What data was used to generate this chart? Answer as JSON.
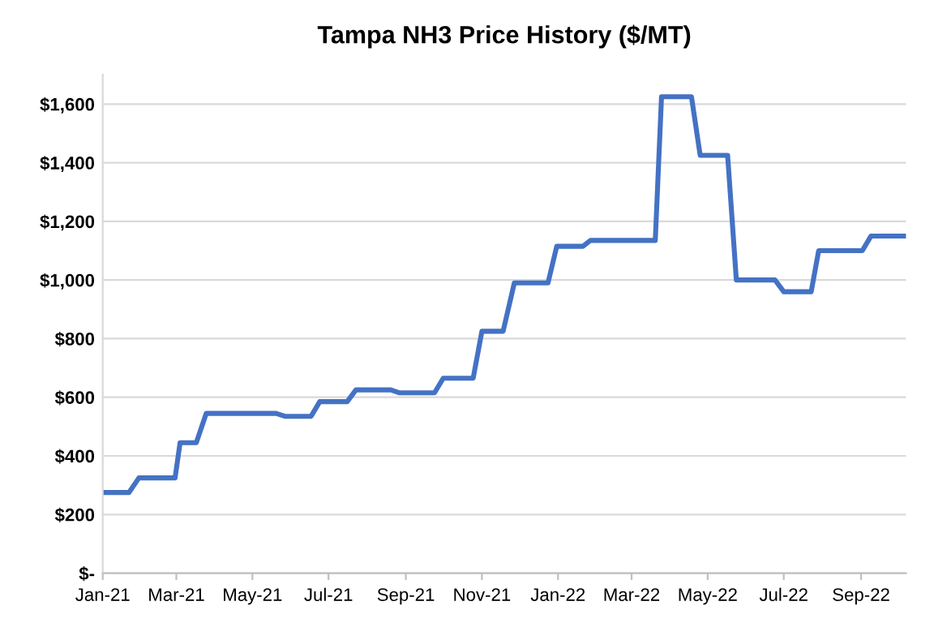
{
  "chart_data": {
    "type": "line",
    "title": "Tampa NH3 Price History ($/MT)",
    "x": [
      "2021-01-01",
      "2021-01-22",
      "2021-01-30",
      "2021-02-28",
      "2021-03-04",
      "2021-03-17",
      "2021-03-25",
      "2021-05-20",
      "2021-05-27",
      "2021-06-17",
      "2021-06-24",
      "2021-07-16",
      "2021-07-23",
      "2021-08-20",
      "2021-08-27",
      "2021-09-24",
      "2021-10-01",
      "2021-10-25",
      "2021-11-01",
      "2021-11-18",
      "2021-11-27",
      "2021-12-24",
      "2021-12-31",
      "2022-01-21",
      "2022-01-27",
      "2022-03-20",
      "2022-03-25",
      "2022-04-18",
      "2022-04-25",
      "2022-05-17",
      "2022-05-24",
      "2022-06-24",
      "2022-07-01",
      "2022-07-23",
      "2022-07-29",
      "2022-09-02",
      "2022-09-09",
      "2022-10-07"
    ],
    "series": [
      {
        "color": "#4472c4",
        "values": [
          275,
          275,
          325,
          325,
          445,
          445,
          545,
          545,
          535,
          535,
          585,
          585,
          625,
          625,
          615,
          615,
          665,
          665,
          825,
          825,
          990,
          990,
          1115,
          1115,
          1135,
          1135,
          1625,
          1625,
          1425,
          1425,
          1000,
          1000,
          960,
          960,
          1100,
          1100,
          1150,
          1150
        ]
      }
    ],
    "xlim": [
      "2021-01-01",
      "2022-10-07"
    ],
    "xticks": [
      {
        "value": "2021-01-01",
        "label": "Jan-21"
      },
      {
        "value": "2021-03-01",
        "label": "Mar-21"
      },
      {
        "value": "2021-05-01",
        "label": "May-21"
      },
      {
        "value": "2021-07-01",
        "label": "Jul-21"
      },
      {
        "value": "2021-09-01",
        "label": "Sep-21"
      },
      {
        "value": "2021-11-01",
        "label": "Nov-21"
      },
      {
        "value": "2022-01-01",
        "label": "Jan-22"
      },
      {
        "value": "2022-03-01",
        "label": "Mar-22"
      },
      {
        "value": "2022-05-01",
        "label": "May-22"
      },
      {
        "value": "2022-07-01",
        "label": "Jul-22"
      },
      {
        "value": "2022-09-01",
        "label": "Sep-22"
      }
    ],
    "ylim": [
      0,
      1700
    ],
    "yticks": [
      {
        "value": 0,
        "label": "$-"
      },
      {
        "value": 200,
        "label": "$200"
      },
      {
        "value": 400,
        "label": "$400"
      },
      {
        "value": 600,
        "label": "$600"
      },
      {
        "value": 800,
        "label": "$800"
      },
      {
        "value": 1000,
        "label": "$1,000"
      },
      {
        "value": 1200,
        "label": "$1,200"
      },
      {
        "value": 1400,
        "label": "$1,400"
      },
      {
        "value": 1600,
        "label": "$1,600"
      }
    ],
    "grid": "y",
    "legend": false,
    "marker": "none",
    "line_style": "solid"
  }
}
